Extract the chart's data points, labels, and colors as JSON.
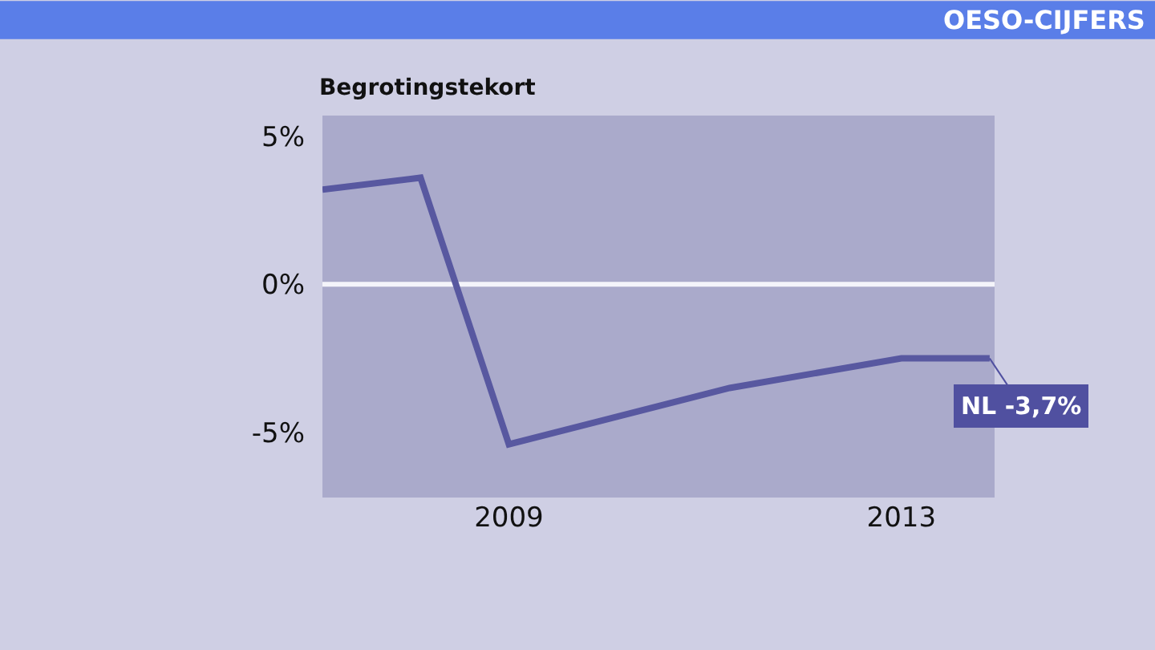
{
  "chart_data": {
    "type": "line",
    "title": "OESO-CIJFERS",
    "ylabel": "Begrotingstekort",
    "x": [
      2007.1,
      2008.1,
      2009,
      2011.25,
      2013,
      2013.9
    ],
    "series": [
      {
        "color": "#5858a0",
        "values": [
          3.2,
          3.6,
          -5.4,
          -3.5,
          -2.5,
          -2.5
        ]
      }
    ],
    "xlim": [
      2007.1,
      2013.95
    ],
    "xticks": [
      2009,
      2013
    ],
    "ylim": [
      -7.2,
      5.7
    ],
    "yticks": [
      {
        "value": 5,
        "label": "5%"
      },
      {
        "value": 0,
        "label": "0%"
      },
      {
        "value": -5,
        "label": "-5%"
      }
    ],
    "ref_lines": [
      {
        "axis": "y",
        "value": 0,
        "color": "#f4f4fa"
      }
    ],
    "annotations": [
      {
        "text": "NL -3,7%",
        "x": 2013.9,
        "y": -2.5
      }
    ],
    "grid": false,
    "marker": "none",
    "line_style": "solid"
  }
}
